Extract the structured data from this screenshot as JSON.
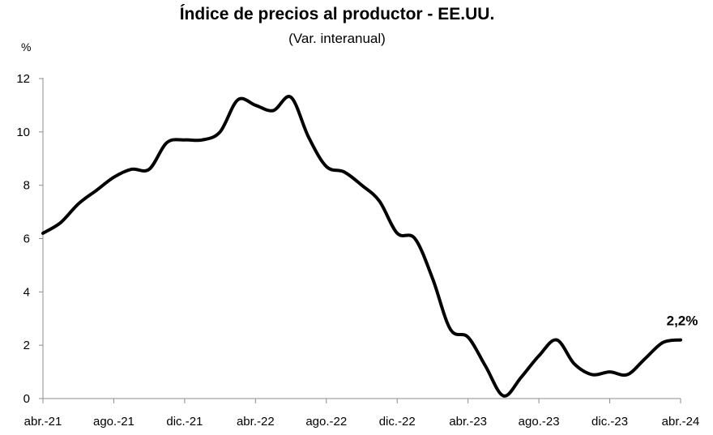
{
  "chart_data": {
    "type": "line",
    "title": "Índice de precios al productor - EE.UU.",
    "subtitle": "(Var. interanual)",
    "unit_label": "%",
    "xlabel": "",
    "ylabel": "",
    "ylim": [
      0,
      12
    ],
    "y_ticks": [
      "0",
      "2",
      "4",
      "6",
      "8",
      "10",
      "12"
    ],
    "x_tick_labels": [
      "abr.-21",
      "ago.-21",
      "dic.-21",
      "abr.-22",
      "ago.-22",
      "dic.-22",
      "abr.-23",
      "ago.-23",
      "dic.-23",
      "abr.-24"
    ],
    "grid": false,
    "legend": "none",
    "line_color": "#000000",
    "x": [
      "abr.-21",
      "may.-21",
      "jun.-21",
      "jul.-21",
      "ago.-21",
      "sep.-21",
      "oct.-21",
      "nov.-21",
      "dic.-21",
      "ene.-22",
      "feb.-22",
      "mar.-22",
      "abr.-22",
      "may.-22",
      "jun.-22",
      "jul.-22",
      "ago.-22",
      "sep.-22",
      "oct.-22",
      "nov.-22",
      "dic.-22",
      "ene.-23",
      "feb.-23",
      "mar.-23",
      "abr.-23",
      "may.-23",
      "jun.-23",
      "jul.-23",
      "ago.-23",
      "sep.-23",
      "oct.-23",
      "nov.-23",
      "dic.-23",
      "ene.-24",
      "feb.-24",
      "mar.-24",
      "abr.-24"
    ],
    "values": [
      6.2,
      6.6,
      7.3,
      7.8,
      8.3,
      8.6,
      8.6,
      9.6,
      9.7,
      9.7,
      10.0,
      11.2,
      11.0,
      10.8,
      11.3,
      9.8,
      8.7,
      8.5,
      8.0,
      7.4,
      6.2,
      6.0,
      4.5,
      2.6,
      2.3,
      1.2,
      0.1,
      0.8,
      1.6,
      2.2,
      1.3,
      0.9,
      1.0,
      0.9,
      1.5,
      2.1,
      2.2
    ],
    "end_label": "2,2%"
  }
}
